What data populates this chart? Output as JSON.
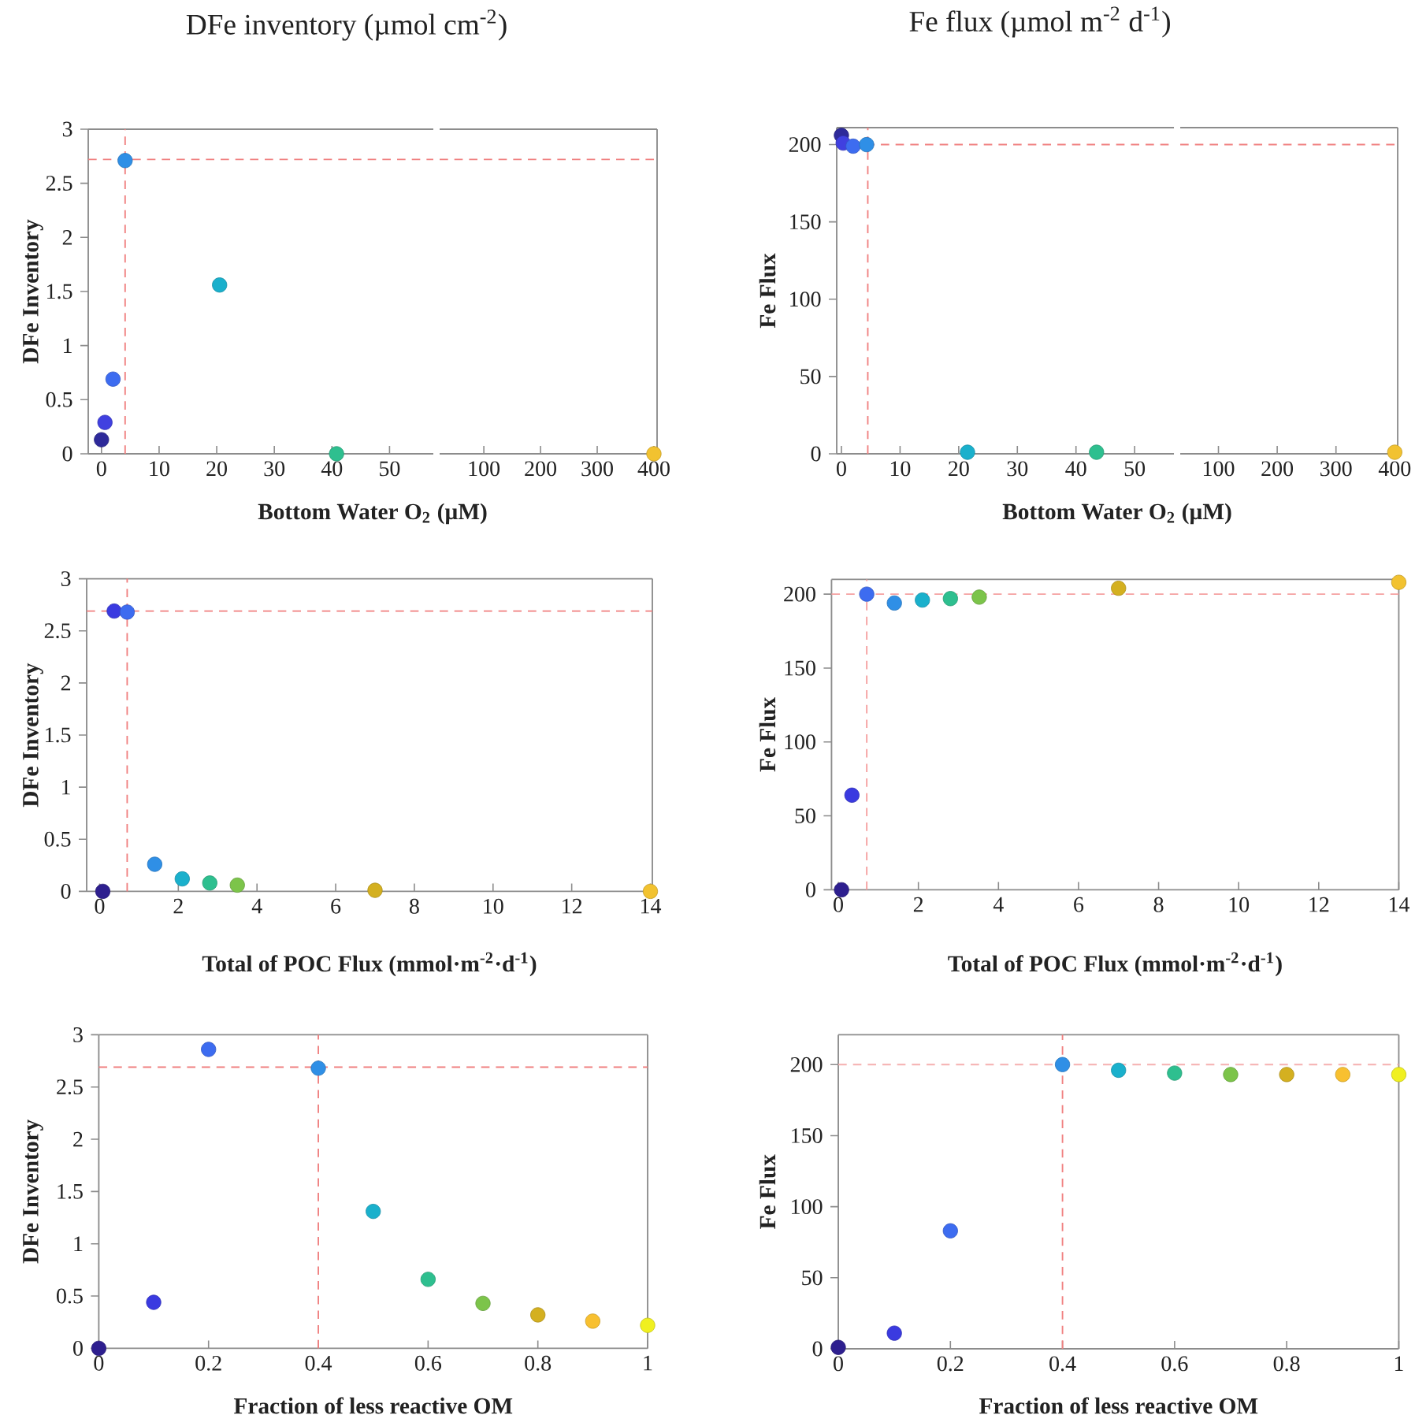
{
  "chart_data": [
    {
      "type": "scatter",
      "title": "DFe inventory (µmol cm$^{-2}$)",
      "xlabel": "Bottom Water O$_{2}$ (µM)",
      "ylabel": "DFe Inventory",
      "x": [
        0,
        0.6,
        2,
        4.1,
        20.5,
        40.8
      ],
      "values": [
        0.13,
        0.29,
        0.69,
        2.71,
        1.56,
        0
      ],
      "colors": [
        "#2e2a9a",
        "#4040e0",
        "#3d6cf0",
        "#2f8fe6",
        "#1ab0cc",
        "#2ebf8f"
      ],
      "marker": "circle",
      "xlim": [
        -2.3,
        57.6
      ],
      "ylim": [
        0,
        3
      ],
      "xticks": [
        0,
        10,
        20,
        30,
        40,
        50
      ],
      "yticks": [
        0,
        0.5,
        1,
        1.5,
        2,
        2.5,
        3
      ],
      "ref_lines": [
        {
          "axis": "x",
          "value": 4.1,
          "color": "#f08080",
          "line_style": "dashed"
        },
        {
          "axis": "y",
          "value": 2.72,
          "color": "#f08080",
          "line_style": "dashed"
        }
      ]
    },
    {
      "type": "scatter",
      "x": [
        400
      ],
      "values": [
        0
      ],
      "colors": [
        "#f2c230"
      ],
      "marker": "circle",
      "xlim": [
        22,
        405.6
      ],
      "ylim": [
        0,
        3
      ],
      "xticks": [
        100,
        200,
        300,
        400
      ],
      "tick_labels": "x",
      "ref_lines": [
        {
          "axis": "y",
          "value": 2.72,
          "color": "#f08080",
          "line_style": "dashed"
        }
      ]
    },
    {
      "type": "scatter",
      "title": "Fe flux (µmol m$^{-2}$ d$^{-1}$)",
      "xlabel": "Bottom Water O$_{2}$ (µM)",
      "ylabel": "Fe Flux",
      "x": [
        0,
        0.3,
        2,
        4.3,
        21.5,
        43.5
      ],
      "values": [
        206,
        201,
        199,
        200,
        1,
        1
      ],
      "colors": [
        "#2e2a9a",
        "#4040e0",
        "#3d6cf0",
        "#2f8fe6",
        "#1ab0cc",
        "#2ebf8f"
      ],
      "marker": "circle",
      "xlim": [
        -0.8,
        56.7
      ],
      "ylim": [
        0,
        211
      ],
      "xticks": [
        0,
        10,
        20,
        30,
        40,
        50
      ],
      "yticks": [
        0,
        50,
        100,
        150,
        200
      ],
      "ref_lines": [
        {
          "axis": "x",
          "value": 4.5,
          "color": "#f08080",
          "line_style": "dashed"
        },
        {
          "axis": "y",
          "value": 200,
          "color": "#f08080",
          "line_style": "dashed"
        }
      ]
    },
    {
      "type": "scatter",
      "x": [
        400
      ],
      "values": [
        1
      ],
      "colors": [
        "#f2c230"
      ],
      "marker": "circle",
      "xlim": [
        35,
        405
      ],
      "ylim": [
        0,
        211
      ],
      "xticks": [
        100,
        200,
        300,
        400
      ],
      "tick_labels": "x",
      "ref_lines": [
        {
          "axis": "y",
          "value": 200,
          "color": "#f08080",
          "line_style": "dashed"
        }
      ]
    },
    {
      "type": "scatter",
      "xlabel": "Total of POC Flux (mmol·m$^{-2}$·d$^{-1}$)",
      "ylabel": "DFe Inventory",
      "x": [
        0.08,
        0.37,
        0.7,
        1.4,
        2.1,
        2.8,
        3.5,
        7,
        14
      ],
      "values": [
        0,
        2.69,
        2.68,
        0.26,
        0.12,
        0.08,
        0.06,
        0.01,
        0
      ],
      "colors": [
        "#2e1f8f",
        "#3a3ae0",
        "#3d6cf0",
        "#2f8fe6",
        "#1ab0cc",
        "#2ebf8f",
        "#7cc44a",
        "#d4b020",
        "#f2c230"
      ],
      "marker": "circle",
      "xlim": [
        -0.33,
        14.05
      ],
      "ylim": [
        0,
        3
      ],
      "xticks": [
        0,
        2,
        4,
        6,
        8,
        10,
        12,
        14
      ],
      "yticks": [
        0,
        0.5,
        1,
        1.5,
        2,
        2.5,
        3
      ],
      "ref_lines": [
        {
          "axis": "x",
          "value": 0.7,
          "color": "#f08080",
          "line_style": "dashed"
        },
        {
          "axis": "y",
          "value": 2.69,
          "color": "#f08080",
          "line_style": "dashed"
        }
      ]
    },
    {
      "type": "scatter",
      "xlabel": "Total of POC Flux (mmol·m$^{-2}$·d$^{-1}$)",
      "ylabel": "Fe Flux",
      "x": [
        0.08,
        0.34,
        0.71,
        1.4,
        2.1,
        2.8,
        3.52,
        7,
        14
      ],
      "values": [
        0,
        64,
        200,
        194,
        196,
        197,
        198,
        204,
        208
      ],
      "colors": [
        "#2e1f8f",
        "#3a3ae0",
        "#3d6cf0",
        "#2f8fe6",
        "#1ab0cc",
        "#2ebf8f",
        "#7cc44a",
        "#d4b020",
        "#f2c230"
      ],
      "marker": "circle",
      "xlim": [
        -0.17,
        14
      ],
      "ylim": [
        0,
        210
      ],
      "xticks": [
        0,
        2,
        4,
        6,
        8,
        10,
        12,
        14
      ],
      "yticks": [
        0,
        50,
        100,
        150,
        200
      ],
      "ref_lines": [
        {
          "axis": "x",
          "value": 0.71,
          "color": "#f5a0a0",
          "line_style": "dashed"
        },
        {
          "axis": "y",
          "value": 200,
          "color": "#f5a0a0",
          "line_style": "dashed"
        }
      ]
    },
    {
      "type": "scatter",
      "xlabel": "Fraction of less reactive OM",
      "ylabel": "DFe Inventory",
      "x": [
        0,
        0.1,
        0.2,
        0.4,
        0.5,
        0.6,
        0.7,
        0.8,
        0.9,
        1
      ],
      "values": [
        0,
        0.44,
        2.86,
        2.68,
        1.31,
        0.66,
        0.43,
        0.32,
        0.26,
        0.22
      ],
      "colors": [
        "#2e1f8f",
        "#3a3ae0",
        "#3d6cf0",
        "#2f8fe6",
        "#1ab0cc",
        "#2ebf8f",
        "#7cc44a",
        "#d4b020",
        "#f8c030",
        "#f0f020"
      ],
      "marker": "circle",
      "xlim": [
        0,
        1
      ],
      "ylim": [
        0,
        3
      ],
      "xticks": [
        0,
        0.2,
        0.4,
        0.6,
        0.8,
        1
      ],
      "yticks": [
        0,
        0.5,
        1,
        1.5,
        2,
        2.5,
        3
      ],
      "ref_lines": [
        {
          "axis": "x",
          "value": 0.4,
          "color": "#f08080",
          "line_style": "dashed"
        },
        {
          "axis": "y",
          "value": 2.69,
          "color": "#f08080",
          "line_style": "dashed"
        }
      ]
    },
    {
      "type": "scatter",
      "xlabel": "Fraction of less reactive OM",
      "ylabel": "Fe Flux",
      "x": [
        0,
        0.1,
        0.2,
        0.4,
        0.5,
        0.6,
        0.7,
        0.8,
        0.9,
        1
      ],
      "values": [
        1,
        11,
        83,
        200,
        196,
        194,
        193,
        193,
        193,
        193
      ],
      "colors": [
        "#2e1f8f",
        "#3a3ae0",
        "#3d6cf0",
        "#2f8fe6",
        "#1ab0cc",
        "#2ebf8f",
        "#7cc44a",
        "#d4b020",
        "#f8c030",
        "#f0f020"
      ],
      "marker": "circle",
      "xlim": [
        0,
        1
      ],
      "ylim": [
        0,
        221
      ],
      "xticks": [
        0,
        0.2,
        0.4,
        0.6,
        0.8,
        1
      ],
      "yticks": [
        0,
        50,
        100,
        150,
        200
      ],
      "ref_lines": [
        {
          "axis": "x",
          "value": 0.4,
          "color": "#f08080",
          "line_style": "dashed"
        },
        {
          "axis": "y",
          "value": 200,
          "color": "#f5b0b0",
          "line_style": "dashed"
        }
      ]
    }
  ]
}
